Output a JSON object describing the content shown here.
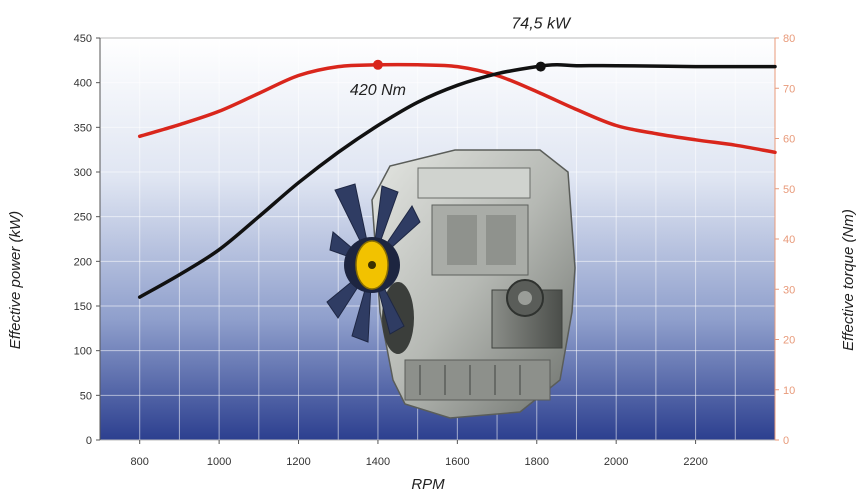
{
  "chart_data": {
    "type": "line",
    "title": "",
    "xlabel": "RPM",
    "ylabel_left": "Effective power (kW)",
    "ylabel_right": "Effective torque (Nm)",
    "xlim": [
      700,
      2400
    ],
    "ylim_left": [
      0,
      450
    ],
    "ylim_right": [
      0,
      80
    ],
    "x_ticks": [
      800,
      1000,
      1200,
      1400,
      1600,
      1800,
      2000,
      2200
    ],
    "y_ticks_left": [
      0,
      50,
      100,
      150,
      200,
      250,
      300,
      350,
      400,
      450
    ],
    "y_ticks_right": [
      0,
      10,
      20,
      30,
      40,
      50,
      60,
      70,
      80
    ],
    "grid": true,
    "series": [
      {
        "axis": "left",
        "color": "#d9261c",
        "x": [
          800,
          900,
          1000,
          1100,
          1200,
          1300,
          1400,
          1500,
          1600,
          1700,
          1800,
          1900,
          2000,
          2100,
          2200,
          2300,
          2400
        ],
        "y": [
          340,
          353,
          368,
          388,
          408,
          418,
          420,
          420,
          418,
          408,
          390,
          370,
          352,
          343,
          336,
          330,
          322
        ]
      },
      {
        "axis": "left",
        "color": "#111111",
        "x": [
          800,
          900,
          1000,
          1100,
          1200,
          1300,
          1400,
          1500,
          1600,
          1700,
          1800,
          1850,
          1900,
          2000,
          2200,
          2400
        ],
        "y": [
          160,
          185,
          213,
          250,
          288,
          322,
          352,
          378,
          397,
          410,
          418,
          420,
          419,
          419,
          418,
          418
        ]
      }
    ],
    "annotations": [
      {
        "text": "420 Nm",
        "x": 1400,
        "y": 420,
        "color": "#d9261c"
      },
      {
        "text": "74,5 kW",
        "x": 1810,
        "y": 418,
        "color": "#111111"
      }
    ]
  }
}
